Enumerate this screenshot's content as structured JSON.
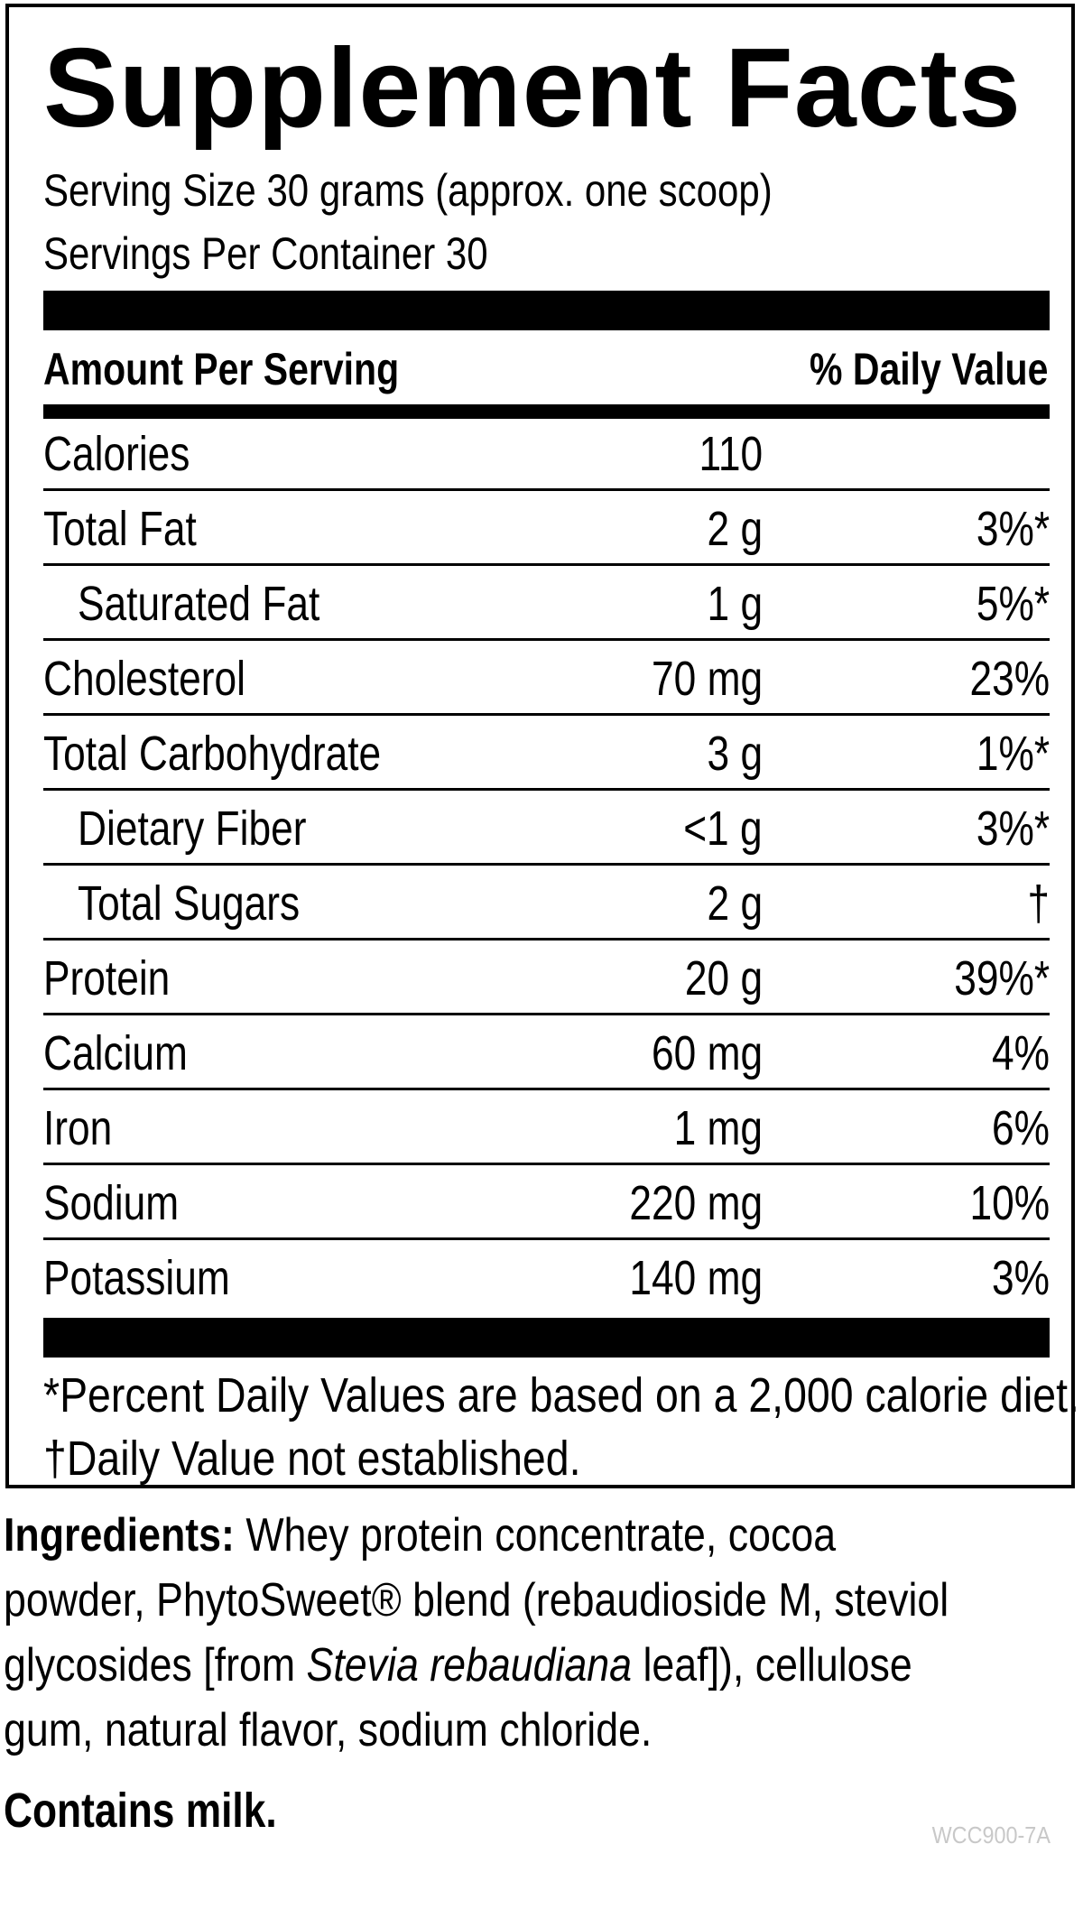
{
  "title": "Supplement Facts",
  "serving_size": "Serving Size 30 grams (approx. one scoop)",
  "servings_per_container": "Servings Per Container 30",
  "header": {
    "amount": "Amount Per Serving",
    "dv": "% Daily Value"
  },
  "rows": [
    {
      "name": "Calories",
      "amount": "110",
      "dv": "",
      "indent": false
    },
    {
      "name": "Total Fat",
      "amount": "2 g",
      "dv": "3%*",
      "indent": false
    },
    {
      "name": "Saturated Fat",
      "amount": "1 g",
      "dv": "5%*",
      "indent": true
    },
    {
      "name": "Cholesterol",
      "amount": "70 mg",
      "dv": "23%",
      "indent": false
    },
    {
      "name": "Total Carbohydrate",
      "amount": "3 g",
      "dv": "1%*",
      "indent": false
    },
    {
      "name": "Dietary Fiber",
      "amount": "<1 g",
      "dv": "3%*",
      "indent": true
    },
    {
      "name": "Total Sugars",
      "amount": "2 g",
      "dv": "†",
      "indent": true
    },
    {
      "name": "Protein",
      "amount": "20 g",
      "dv": "39%*",
      "indent": false
    },
    {
      "name": "Calcium",
      "amount": "60 mg",
      "dv": "4%",
      "indent": false
    },
    {
      "name": "Iron",
      "amount": "1 mg",
      "dv": "6%",
      "indent": false
    },
    {
      "name": "Sodium",
      "amount": "220 mg",
      "dv": "10%",
      "indent": false
    },
    {
      "name": "Potassium",
      "amount": "140 mg",
      "dv": "3%",
      "indent": false
    }
  ],
  "footnotes": {
    "percent_dv": "*Percent Daily Values are based on a 2,000 calorie diet.",
    "not_established": "†Daily Value not established."
  },
  "ingredients": {
    "label": "Ingredients:",
    "part1": " Whey protein concentrate, cocoa powder, PhytoSweet® blend (rebaudioside M, steviol glycosides [from ",
    "italic": "Stevia rebaudiana",
    "part2": " leaf]), cellulose gum, natural flavor, sodium chloride."
  },
  "contains": "Contains milk.",
  "product_code": "WCC900-7A"
}
